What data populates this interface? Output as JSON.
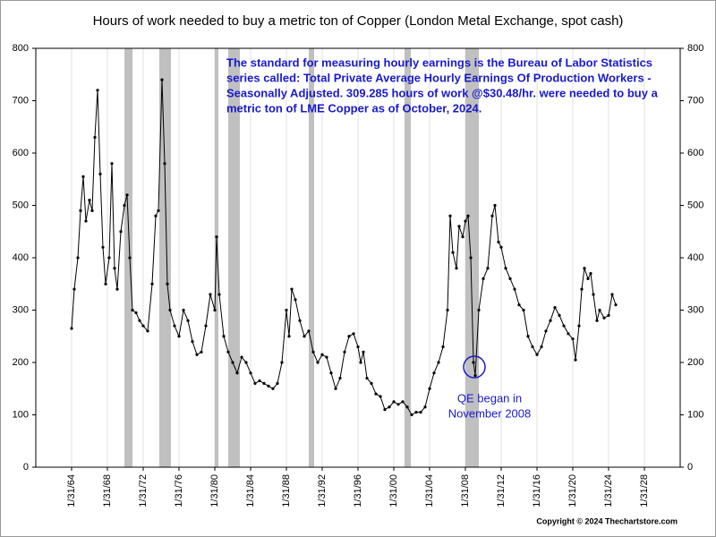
{
  "chart_data": {
    "type": "line",
    "title": "Hours of work needed to buy a metric ton of Copper (London Metal Exchange, spot cash)",
    "annotation": [
      "The standard for measuring hourly earnings is the Bureau of Labor Statistics",
      "series called:  Total Private Average Hourly Earnings Of Production Workers -",
      "Seasonally Adjusted.  309.285 hours of work @$30.48/hr. were needed to buy a",
      "metric ton of LME Copper as of October, 2024."
    ],
    "qe_label": [
      "QE began in",
      "November 2008"
    ],
    "copyright": "Copyright © 2024 Thechartstore.com",
    "xlim": [
      1960,
      2032
    ],
    "ylim": [
      0,
      800
    ],
    "y2lim": [
      0,
      800
    ],
    "xticks": [
      {
        "value": 1964,
        "label": "1/31/64"
      },
      {
        "value": 1968,
        "label": "1/31/68"
      },
      {
        "value": 1972,
        "label": "1/31/72"
      },
      {
        "value": 1976,
        "label": "1/31/76"
      },
      {
        "value": 1980,
        "label": "1/31/80"
      },
      {
        "value": 1984,
        "label": "1/31/84"
      },
      {
        "value": 1988,
        "label": "1/31/88"
      },
      {
        "value": 1992,
        "label": "1/31/92"
      },
      {
        "value": 1996,
        "label": "1/31/96"
      },
      {
        "value": 2000,
        "label": "1/31/00"
      },
      {
        "value": 2004,
        "label": "1/31/04"
      },
      {
        "value": 2008,
        "label": "1/31/08"
      },
      {
        "value": 2012,
        "label": "1/31/12"
      },
      {
        "value": 2016,
        "label": "1/31/16"
      },
      {
        "value": 2020,
        "label": "1/31/20"
      },
      {
        "value": 2024,
        "label": "1/31/24"
      },
      {
        "value": 2028,
        "label": "1/31/28"
      }
    ],
    "yticks": [
      0,
      100,
      200,
      300,
      400,
      500,
      600,
      700,
      800
    ],
    "y2ticks": [
      0,
      100,
      200,
      300,
      400,
      500,
      600,
      700,
      800
    ],
    "grid": "x",
    "shaded_periods": [
      [
        1969.9,
        1970.8
      ],
      [
        1973.8,
        1975.1
      ],
      [
        1980.0,
        1980.4
      ],
      [
        1981.5,
        1982.8
      ],
      [
        1990.5,
        1991.1
      ],
      [
        2001.2,
        2001.9
      ],
      [
        2008.0,
        2009.5
      ]
    ],
    "shade_color": "#c0c0c0",
    "color": "#000000",
    "x": [
      1964.0,
      1964.3,
      1964.7,
      1965.0,
      1965.3,
      1965.6,
      1966.0,
      1966.3,
      1966.6,
      1966.9,
      1967.2,
      1967.5,
      1967.8,
      1968.2,
      1968.5,
      1968.8,
      1969.1,
      1969.5,
      1969.9,
      1970.2,
      1970.5,
      1970.8,
      1971.2,
      1971.6,
      1972.0,
      1972.5,
      1973.0,
      1973.4,
      1973.7,
      1974.1,
      1974.4,
      1974.7,
      1975.0,
      1975.5,
      1976.0,
      1976.5,
      1977.0,
      1977.5,
      1978.0,
      1978.5,
      1979.0,
      1979.5,
      1980.0,
      1980.2,
      1980.5,
      1981.0,
      1981.5,
      1982.0,
      1982.5,
      1983.0,
      1983.5,
      1984.0,
      1984.5,
      1985.0,
      1985.5,
      1986.0,
      1986.5,
      1987.0,
      1987.5,
      1988.0,
      1988.3,
      1988.6,
      1989.0,
      1989.5,
      1990.0,
      1990.5,
      1991.0,
      1991.5,
      1992.0,
      1992.5,
      1993.0,
      1993.5,
      1994.0,
      1994.5,
      1995.0,
      1995.5,
      1996.0,
      1996.3,
      1996.6,
      1997.0,
      1997.5,
      1998.0,
      1998.5,
      1999.0,
      1999.5,
      2000.0,
      2000.5,
      2001.0,
      2001.5,
      2002.0,
      2002.5,
      2003.0,
      2003.5,
      2004.0,
      2004.5,
      2005.0,
      2005.5,
      2006.0,
      2006.3,
      2006.6,
      2007.0,
      2007.3,
      2007.7,
      2008.0,
      2008.3,
      2008.6,
      2008.9,
      2009.1,
      2009.5,
      2010.0,
      2010.5,
      2011.0,
      2011.3,
      2011.7,
      2012.0,
      2012.5,
      2013.0,
      2013.5,
      2014.0,
      2014.5,
      2015.0,
      2015.5,
      2016.0,
      2016.5,
      2017.0,
      2017.5,
      2018.0,
      2018.5,
      2019.0,
      2019.5,
      2020.0,
      2020.3,
      2020.7,
      2021.0,
      2021.3,
      2021.7,
      2022.0,
      2022.3,
      2022.7,
      2023.0,
      2023.5,
      2024.0,
      2024.4,
      2024.8
    ],
    "values": [
      265,
      340,
      400,
      490,
      555,
      470,
      510,
      490,
      630,
      720,
      560,
      420,
      350,
      400,
      580,
      380,
      340,
      450,
      500,
      520,
      400,
      300,
      295,
      280,
      270,
      260,
      350,
      480,
      490,
      740,
      580,
      350,
      300,
      270,
      250,
      300,
      280,
      240,
      215,
      220,
      270,
      330,
      300,
      440,
      330,
      250,
      220,
      200,
      180,
      210,
      200,
      180,
      160,
      165,
      160,
      155,
      150,
      160,
      200,
      300,
      250,
      340,
      320,
      280,
      250,
      260,
      220,
      200,
      215,
      210,
      180,
      150,
      170,
      220,
      250,
      255,
      230,
      200,
      220,
      170,
      160,
      140,
      135,
      110,
      115,
      125,
      120,
      125,
      115,
      100,
      105,
      105,
      115,
      150,
      180,
      200,
      230,
      300,
      480,
      410,
      380,
      460,
      440,
      470,
      480,
      400,
      200,
      175,
      300,
      360,
      380,
      480,
      500,
      430,
      420,
      380,
      360,
      340,
      310,
      300,
      250,
      230,
      215,
      230,
      260,
      280,
      305,
      290,
      270,
      255,
      245,
      205,
      270,
      340,
      380,
      360,
      370,
      330,
      280,
      300,
      285,
      290,
      330,
      310
    ]
  }
}
